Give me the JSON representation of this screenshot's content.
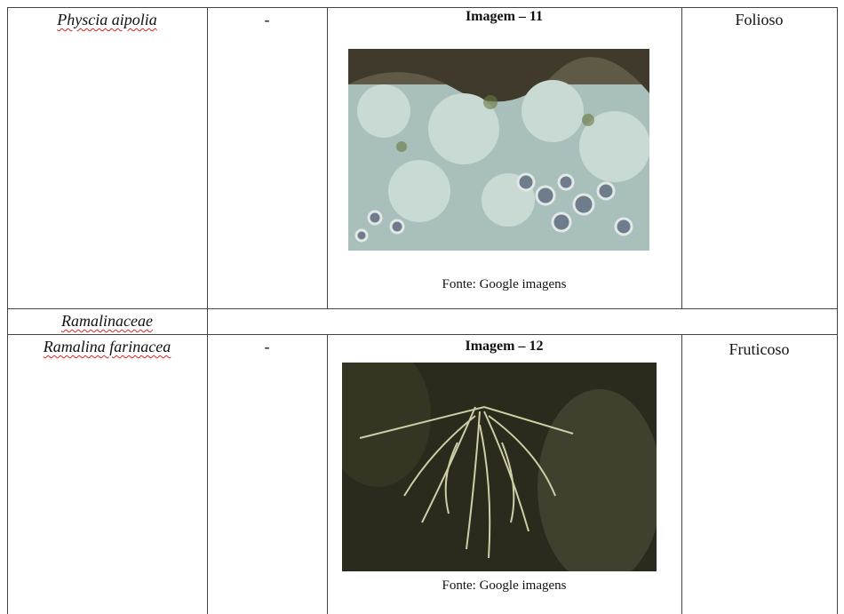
{
  "table": {
    "rows": [
      {
        "species": "Physcia aipolia",
        "code": "-",
        "image_title": "Imagem – 11",
        "source": "Fonte: Google imagens",
        "type": "Folioso"
      },
      {
        "family": "Ramalinaceae"
      },
      {
        "species": "Ramalina farinacea",
        "code": "-",
        "image_title": "Imagem – 12",
        "source": "Fonte: Google imagens",
        "type": "Fruticoso"
      }
    ]
  }
}
